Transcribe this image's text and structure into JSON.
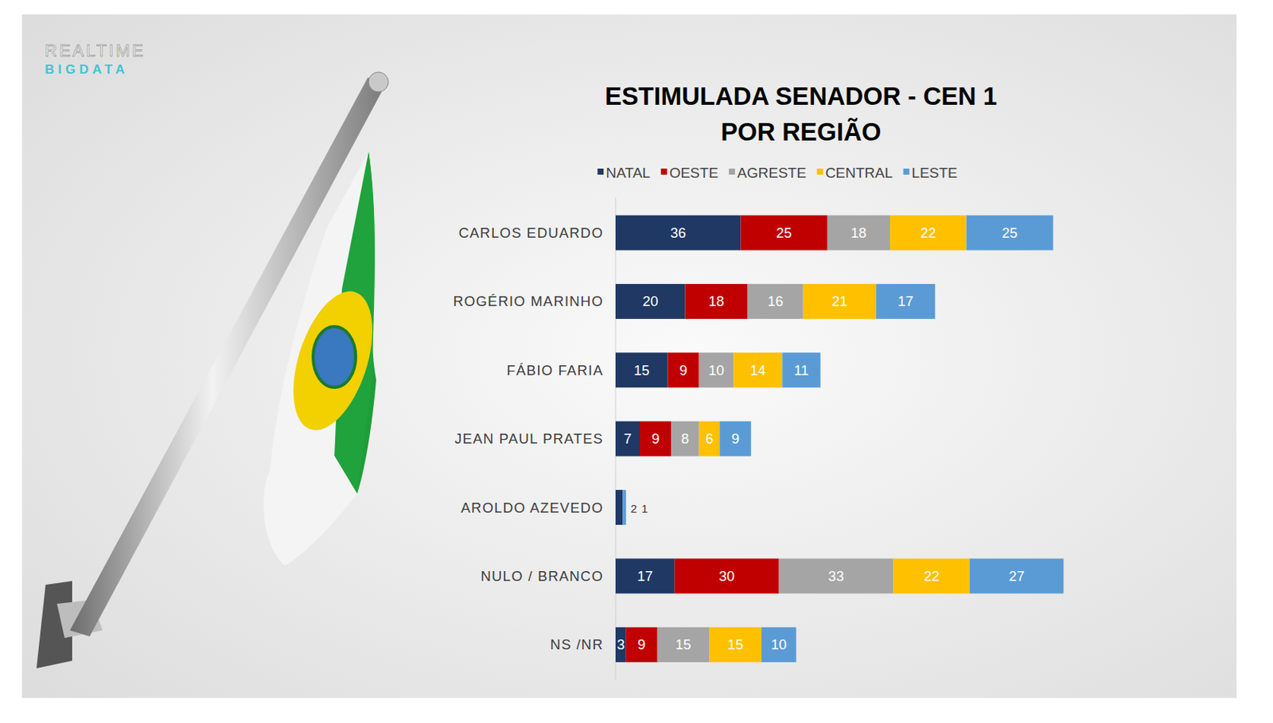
{
  "logo": {
    "line1": "REALTIME",
    "line2": "BIGDATA"
  },
  "chart_data": {
    "type": "bar",
    "title": "ESTIMULADA SENADOR - CEN 1\nPOR REGIÃO",
    "orientation": "horizontal",
    "stacked": true,
    "data_labels": true,
    "tick_labels": "y",
    "grid": false,
    "legend": "top",
    "xlim": [
      0,
      130
    ],
    "categories": [
      "CARLOS EDUARDO",
      "ROGÉRIO MARINHO",
      "FÁBIO FARIA",
      "JEAN PAUL PRATES",
      "AROLDO AZEVEDO",
      "NULO / BRANCO",
      "NS /NR"
    ],
    "series": [
      {
        "name": "NATAL",
        "color": "#1f3864",
        "values": [
          36,
          20,
          15,
          7,
          2,
          17,
          3
        ]
      },
      {
        "name": "OESTE",
        "color": "#c00000",
        "values": [
          25,
          18,
          9,
          9,
          0,
          30,
          9
        ]
      },
      {
        "name": "AGRESTE",
        "color": "#a5a5a5",
        "values": [
          18,
          16,
          10,
          8,
          0,
          33,
          15
        ]
      },
      {
        "name": "CENTRAL",
        "color": "#ffc000",
        "values": [
          22,
          21,
          14,
          6,
          0,
          22,
          15
        ]
      },
      {
        "name": "LESTE",
        "color": "#5b9bd5",
        "values": [
          25,
          17,
          11,
          9,
          1,
          27,
          10
        ]
      }
    ]
  }
}
